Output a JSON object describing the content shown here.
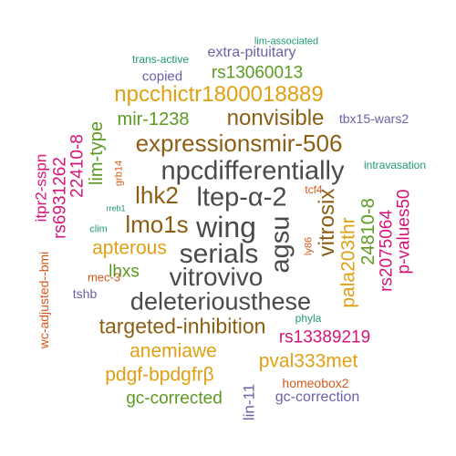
{
  "palette": {
    "dark_gray": "#4a4a4a",
    "brown": "#8c5e14",
    "amber": "#e0a013",
    "green": "#5c9a22",
    "teal": "#1f9a72",
    "purple": "#6a62a8",
    "magenta": "#d6157a",
    "orange": "#d5591a"
  },
  "words": [
    {
      "text": "wing",
      "color": "#4a4a4a"
    },
    {
      "text": "serials",
      "color": "#4a4a4a"
    },
    {
      "text": "ltep-α-2",
      "color": "#4a4a4a"
    },
    {
      "text": "npcdifferentially",
      "color": "#4a4a4a"
    },
    {
      "text": "agsu",
      "color": "#4a4a4a"
    },
    {
      "text": "vitrovivo",
      "color": "#4a4a4a"
    },
    {
      "text": "deleteriousthese",
      "color": "#4a4a4a"
    },
    {
      "text": "lmo1s",
      "color": "#8c5e14"
    },
    {
      "text": "lhk2",
      "color": "#8c5e14"
    },
    {
      "text": "expressionsmir-506",
      "color": "#8c5e14"
    },
    {
      "text": "nonvisible",
      "color": "#8c5e14"
    },
    {
      "text": "targeted-inhibition",
      "color": "#8c5e14"
    },
    {
      "text": "vitrosix",
      "color": "#8c5e14"
    },
    {
      "text": "npcchictr1800018889",
      "color": "#e0a013"
    },
    {
      "text": "apterous",
      "color": "#e0a013"
    },
    {
      "text": "anemiawe",
      "color": "#e0a013"
    },
    {
      "text": "pdgf-bpdgfrβ",
      "color": "#e0a013"
    },
    {
      "text": "pval333met",
      "color": "#e0a013"
    },
    {
      "text": "pala203thr",
      "color": "#e0a013"
    },
    {
      "text": "mir-1238",
      "color": "#5c9a22"
    },
    {
      "text": "rs13060013",
      "color": "#5c9a22"
    },
    {
      "text": "lim-type",
      "color": "#5c9a22"
    },
    {
      "text": "lhxs",
      "color": "#5c9a22"
    },
    {
      "text": "gc-corrected",
      "color": "#5c9a22"
    },
    {
      "text": "24810-8",
      "color": "#5c9a22"
    },
    {
      "text": "rs13389219",
      "color": "#d6157a"
    },
    {
      "text": "rs2075064",
      "color": "#d6157a"
    },
    {
      "text": "p-values50",
      "color": "#d6157a"
    },
    {
      "text": "rs6931262",
      "color": "#d6157a"
    },
    {
      "text": "22410-8",
      "color": "#d6157a"
    },
    {
      "text": "itpr2-sspn",
      "color": "#d6157a"
    },
    {
      "text": "extra-pituitary",
      "color": "#6a62a8"
    },
    {
      "text": "copied",
      "color": "#6a62a8"
    },
    {
      "text": "tbx15-wars2",
      "color": "#6a62a8"
    },
    {
      "text": "gc-correction",
      "color": "#6a62a8"
    },
    {
      "text": "lin-11",
      "color": "#6a62a8"
    },
    {
      "text": "tshb",
      "color": "#6a62a8"
    },
    {
      "text": "trans-active",
      "color": "#1f9a72"
    },
    {
      "text": "lim-associated",
      "color": "#1f9a72"
    },
    {
      "text": "intravasation",
      "color": "#1f9a72"
    },
    {
      "text": "clim",
      "color": "#1f9a72"
    },
    {
      "text": "rreb1",
      "color": "#1f9a72"
    },
    {
      "text": "phyla",
      "color": "#1f9a72"
    },
    {
      "text": "grb14",
      "color": "#d5591a"
    },
    {
      "text": "tcf4",
      "color": "#d5591a"
    },
    {
      "text": "ly86",
      "color": "#d5591a"
    },
    {
      "text": "mec-3",
      "color": "#d5591a"
    },
    {
      "text": "wc-adjusted--bmi",
      "color": "#d5591a"
    },
    {
      "text": "homeobox2",
      "color": "#d5591a"
    }
  ]
}
